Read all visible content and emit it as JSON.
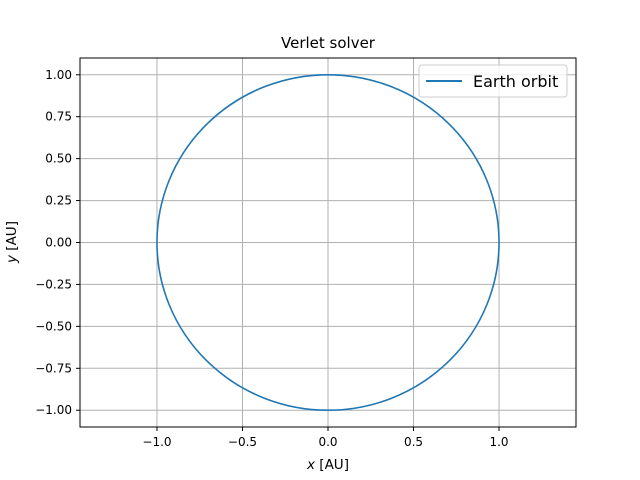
{
  "chart_data": {
    "type": "line",
    "title": "Verlet solver",
    "xlabel": {
      "var": "x",
      "unit": " [AU]"
    },
    "ylabel": {
      "var": "y",
      "unit": " [AU]"
    },
    "xlim": [
      -1.45,
      1.45
    ],
    "ylim": [
      -1.1,
      1.1
    ],
    "xticks": [
      -1.0,
      -0.5,
      0.0,
      0.5,
      1.0
    ],
    "xtick_labels": [
      "−1.0",
      "−0.5",
      "0.0",
      "0.5",
      "1.0"
    ],
    "yticks": [
      -1.0,
      -0.75,
      -0.5,
      -0.25,
      0.0,
      0.25,
      0.5,
      0.75,
      1.0
    ],
    "ytick_labels": [
      "−1.00",
      "−0.75",
      "−0.50",
      "−0.25",
      "0.00",
      "0.25",
      "0.50",
      "0.75",
      "1.00"
    ],
    "grid": true,
    "legend_position": "top-right",
    "series": [
      {
        "name": "Earth orbit",
        "color": "#1f77b4",
        "shape": "circle",
        "center": [
          0,
          0
        ],
        "radius": 1.0
      }
    ]
  }
}
